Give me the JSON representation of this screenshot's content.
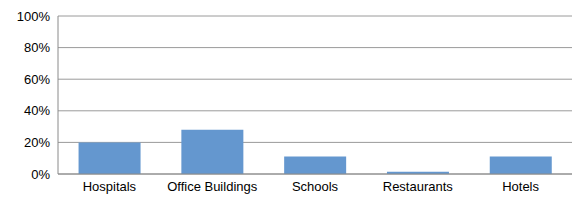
{
  "chart_data": {
    "type": "bar",
    "categories": [
      "Hospitals",
      "Office Buildings",
      "Schools",
      "Restaurants",
      "Hotels"
    ],
    "values": [
      20,
      28,
      11,
      1.5,
      11
    ],
    "color": "#6497cf",
    "ylim": [
      0,
      100
    ],
    "yticks": [
      {
        "value": 0,
        "label": "0%"
      },
      {
        "value": 20,
        "label": "20%"
      },
      {
        "value": 40,
        "label": "40%"
      },
      {
        "value": 60,
        "label": "60%"
      },
      {
        "value": 80,
        "label": "80%"
      },
      {
        "value": 100,
        "label": "100%"
      }
    ],
    "grid": true
  }
}
